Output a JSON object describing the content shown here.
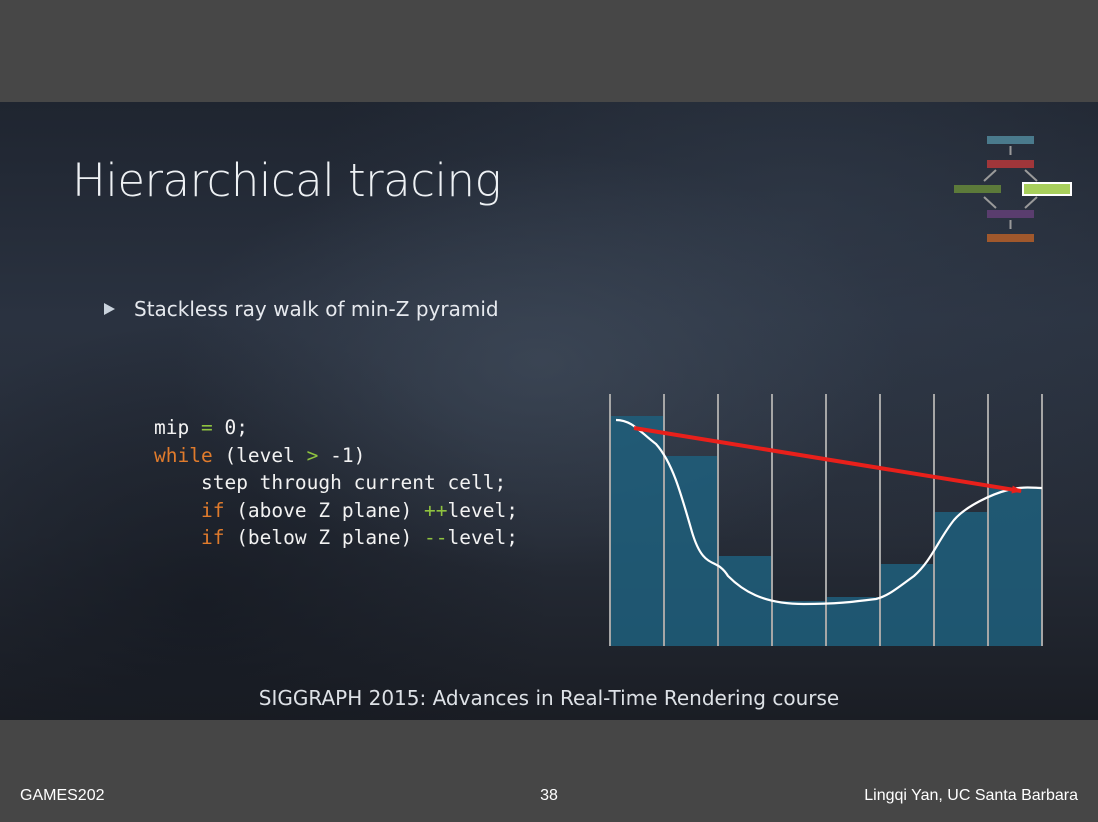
{
  "slide": {
    "title": "Hierarchical tracing",
    "bullet": "Stackless ray walk of min-Z pyramid",
    "code": {
      "line1": {
        "a": "mip ",
        "b": "=",
        "c": " 0;"
      },
      "line2": {
        "kw": "while",
        "a": " (level ",
        "op": ">",
        "b": " -1)"
      },
      "line3": {
        "indent": "    ",
        "a": "step through current cell;"
      },
      "line4": {
        "indent": "    ",
        "kw": "if",
        "a": " (above Z plane) ",
        "op": "++",
        "b": "level;"
      },
      "line5": {
        "indent": "    ",
        "kw": "if",
        "a": " (below Z plane) ",
        "op": "--",
        "b": "level;"
      }
    },
    "caption": "SIGGRAPH 2015: Advances in Real-Time Rendering course"
  },
  "footer": {
    "left": "GAMES202",
    "page": "38",
    "right": "Lingqi Yan, UC Santa Barbara"
  },
  "colors": {
    "keyword": "#e07b2c",
    "operator": "#8fc33f",
    "cell_fill": "#1f5f7d",
    "ray": "#e8201b",
    "grid": "#a6a6a6"
  },
  "nav_icon": "pipeline-stage-diagram"
}
